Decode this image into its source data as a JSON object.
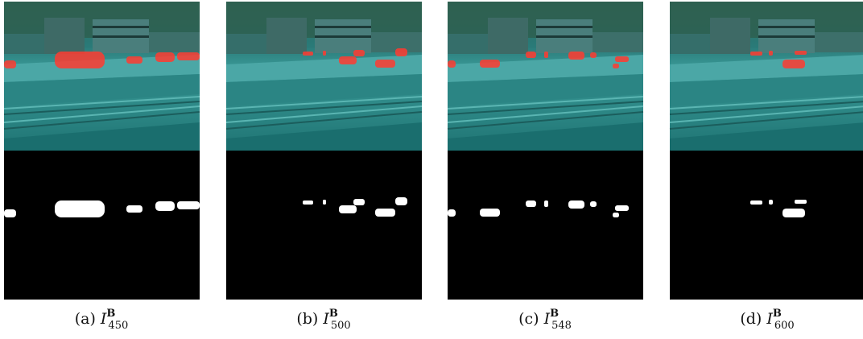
{
  "figure": {
    "panels": [
      {
        "label": "(a)",
        "variable": "I",
        "superscript": "B",
        "subscript": "450"
      },
      {
        "label": "(b)",
        "variable": "I",
        "superscript": "B",
        "subscript": "500"
      },
      {
        "label": "(c)",
        "variable": "I",
        "superscript": "B",
        "subscript": "548"
      },
      {
        "label": "(d)",
        "variable": "I",
        "superscript": "B",
        "subscript": "600"
      }
    ]
  }
}
